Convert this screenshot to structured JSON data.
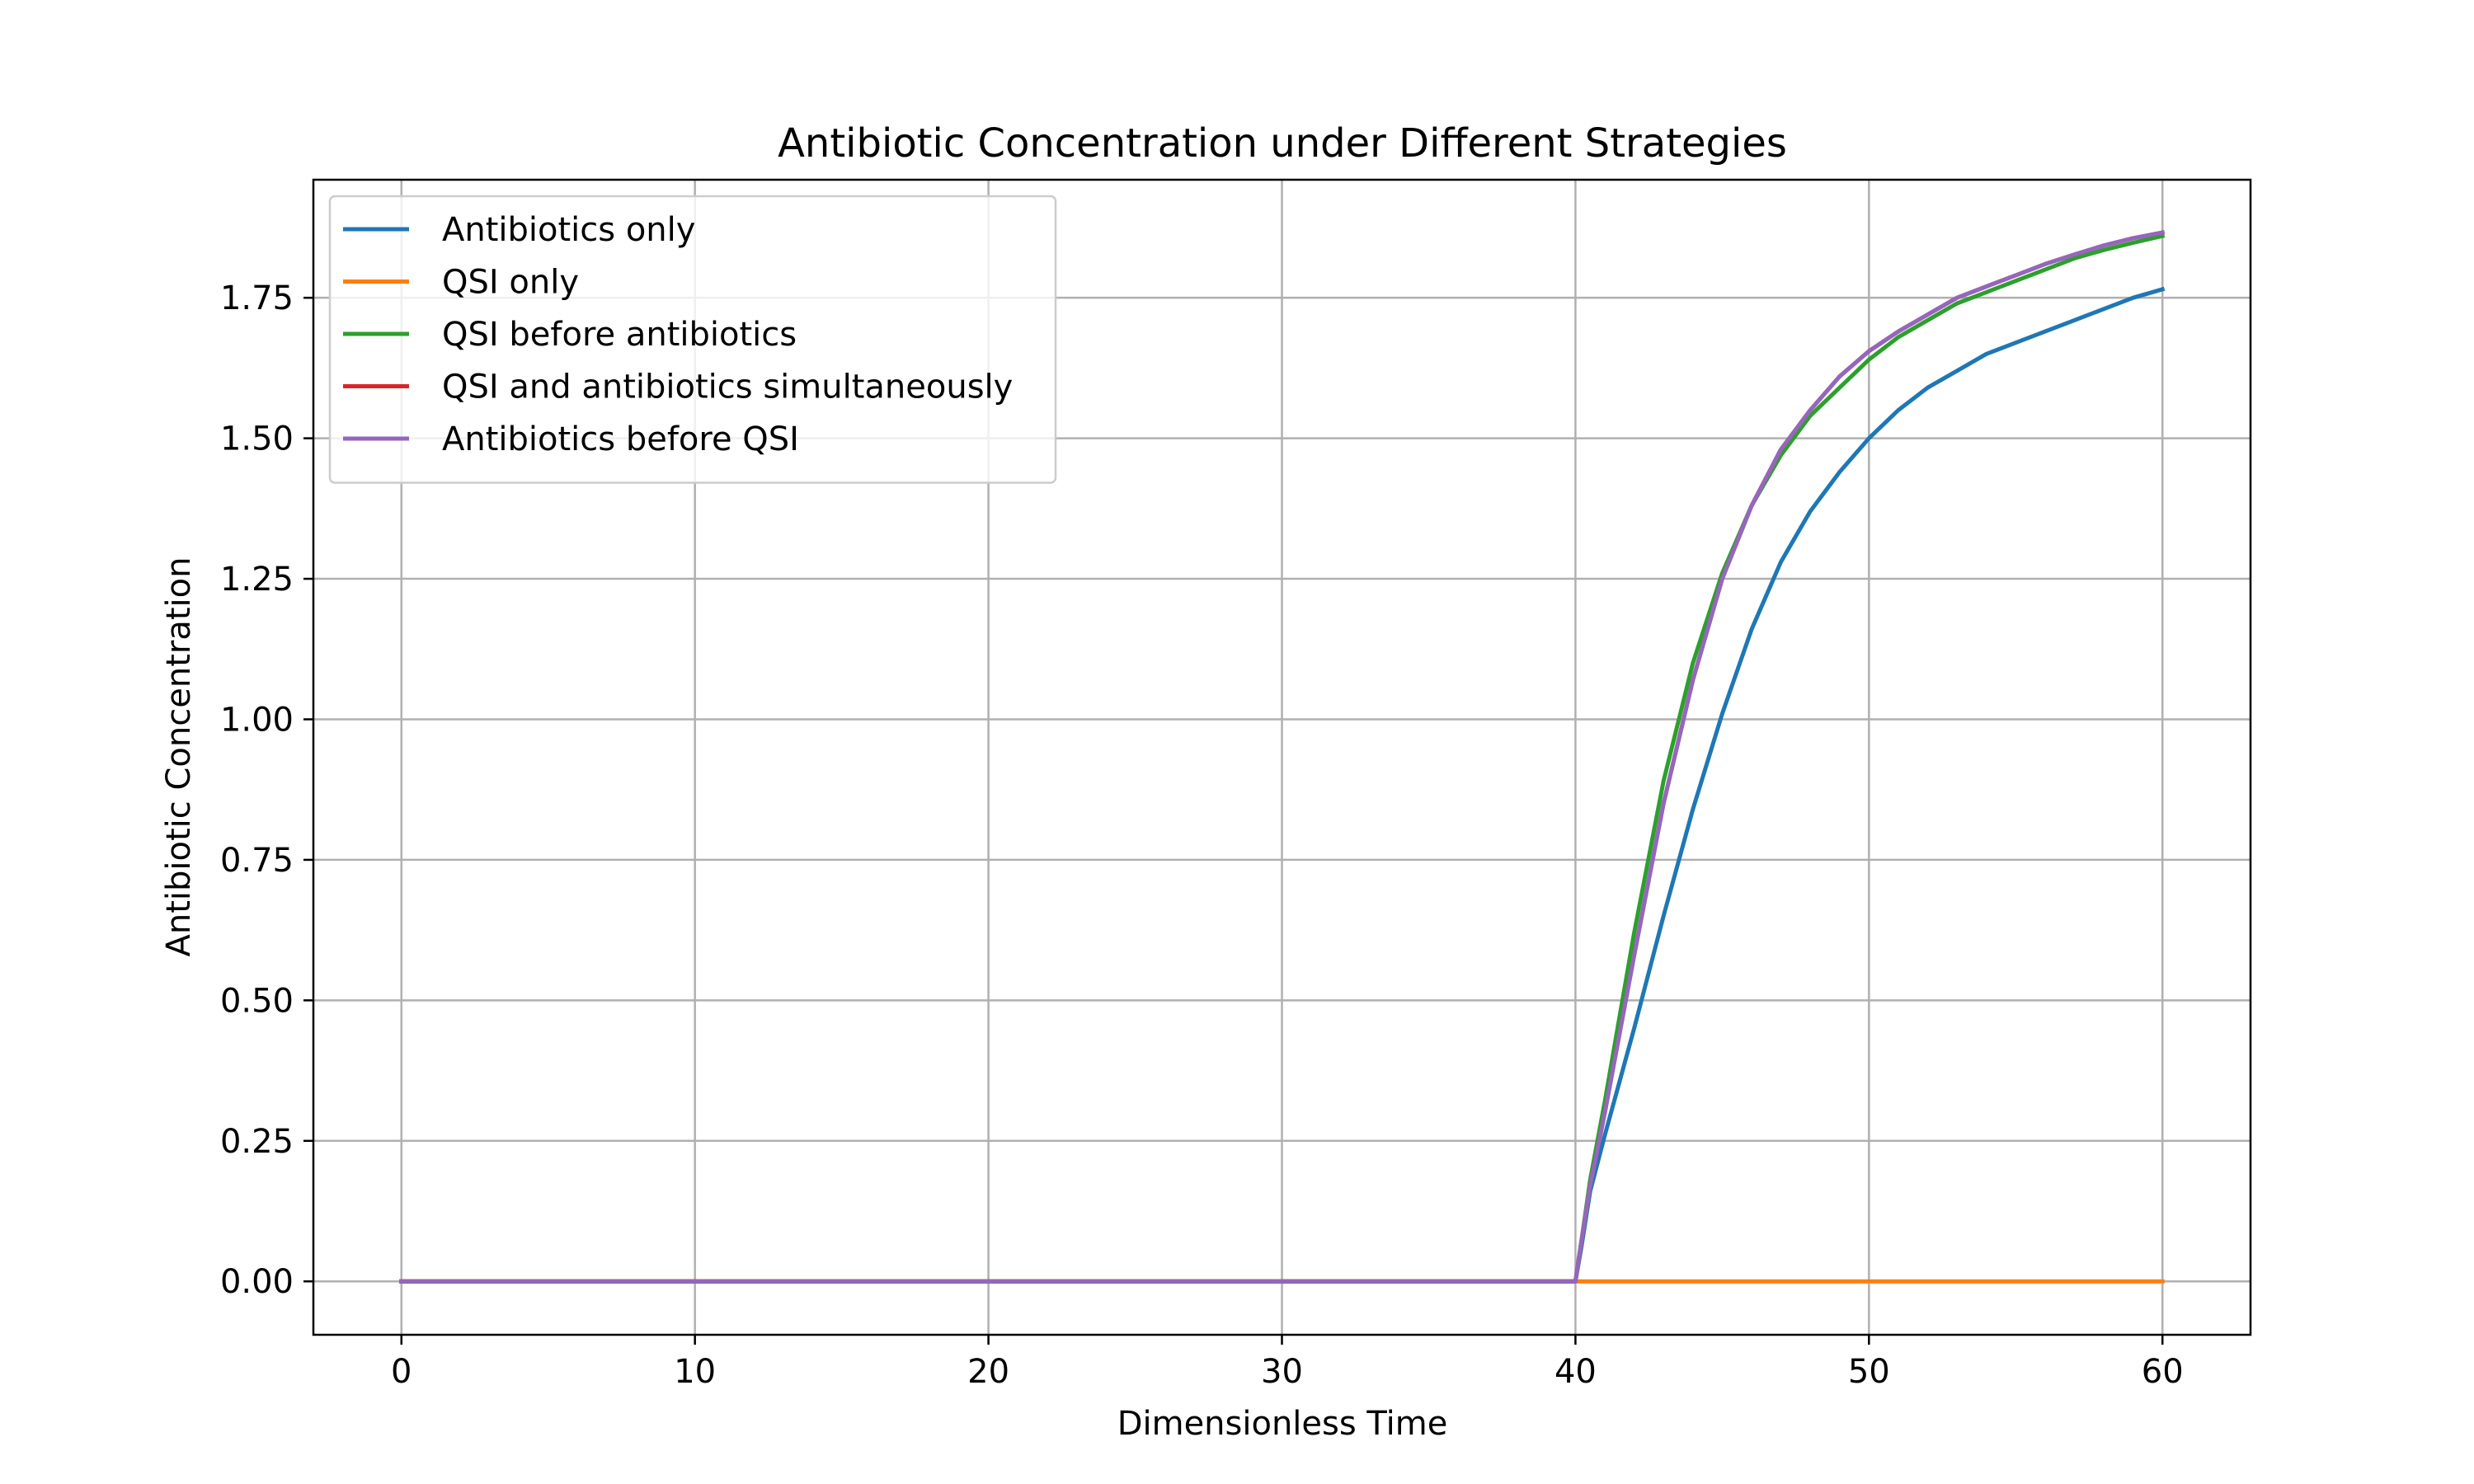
{
  "chart_data": {
    "type": "line",
    "title": "Antibiotic Concentration under Different Strategies",
    "xlabel": "Dimensionless Time",
    "ylabel": "Antibiotic Concentration",
    "xlim": [
      -3,
      63
    ],
    "ylim": [
      -0.095,
      1.96
    ],
    "xticks": [
      0,
      10,
      20,
      30,
      40,
      50,
      60
    ],
    "xtick_labels": [
      "0",
      "10",
      "20",
      "30",
      "40",
      "50",
      "60"
    ],
    "yticks": [
      0,
      0.25,
      0.5,
      0.75,
      1.0,
      1.25,
      1.5,
      1.75
    ],
    "ytick_labels": [
      "0.00",
      "0.25",
      "0.50",
      "0.75",
      "1.00",
      "1.25",
      "1.50",
      "1.75"
    ],
    "grid": true,
    "legend_position": "top-left",
    "series": [
      {
        "name": "Antibiotics only",
        "color": "#1f77b4",
        "x": [
          0,
          10,
          20,
          30,
          39.9,
          40,
          40.2,
          40.5,
          41,
          42,
          43,
          44,
          45,
          46,
          47,
          48,
          49,
          50,
          51,
          52,
          53,
          54,
          55,
          56,
          57,
          58,
          59,
          60
        ],
        "y": [
          0,
          0,
          0,
          0,
          0,
          0,
          0.06,
          0.16,
          0.26,
          0.45,
          0.65,
          0.84,
          1.01,
          1.16,
          1.28,
          1.37,
          1.44,
          1.5,
          1.55,
          1.59,
          1.62,
          1.65,
          1.67,
          1.69,
          1.71,
          1.73,
          1.75,
          1.765
        ]
      },
      {
        "name": "QSI only",
        "color": "#ff7f0e",
        "x": [
          0,
          10,
          20,
          30,
          40,
          50,
          60
        ],
        "y": [
          0,
          0,
          0,
          0,
          0,
          0,
          0
        ]
      },
      {
        "name": "QSI before antibiotics",
        "color": "#2ca02c",
        "x": [
          0,
          10,
          20,
          30,
          39.9,
          40,
          40.2,
          40.5,
          41,
          42,
          43,
          44,
          45,
          46,
          47,
          48,
          49,
          50,
          51,
          52,
          53,
          54,
          55,
          56,
          57,
          58,
          59,
          60
        ],
        "y": [
          0,
          0,
          0,
          0,
          0,
          0,
          0.07,
          0.18,
          0.32,
          0.62,
          0.89,
          1.1,
          1.26,
          1.38,
          1.47,
          1.54,
          1.59,
          1.64,
          1.68,
          1.71,
          1.74,
          1.76,
          1.78,
          1.8,
          1.82,
          1.835,
          1.848,
          1.86
        ]
      },
      {
        "name": "QSI and antibiotics simultaneously",
        "color": "#d62728",
        "x": [
          0,
          10,
          20,
          30,
          39.9,
          40,
          40.2,
          40.5,
          41,
          42,
          43,
          44,
          45,
          46,
          47,
          48,
          49,
          50,
          51,
          52,
          53,
          54,
          55,
          56,
          57,
          58,
          59,
          60
        ],
        "y": [
          0,
          0,
          0,
          0,
          0,
          0,
          0.07,
          0.17,
          0.3,
          0.58,
          0.85,
          1.07,
          1.25,
          1.38,
          1.48,
          1.55,
          1.61,
          1.655,
          1.69,
          1.72,
          1.75,
          1.77,
          1.79,
          1.81,
          1.827,
          1.843,
          1.856,
          1.866
        ]
      },
      {
        "name": "Antibiotics before QSI",
        "color": "#9467bd",
        "x": [
          0,
          10,
          20,
          30,
          39.9,
          40,
          40.2,
          40.5,
          41,
          42,
          43,
          44,
          45,
          46,
          47,
          48,
          49,
          50,
          51,
          52,
          53,
          54,
          55,
          56,
          57,
          58,
          59,
          60
        ],
        "y": [
          0,
          0,
          0,
          0,
          0,
          0,
          0.07,
          0.17,
          0.3,
          0.58,
          0.85,
          1.07,
          1.25,
          1.38,
          1.48,
          1.55,
          1.61,
          1.655,
          1.69,
          1.72,
          1.75,
          1.77,
          1.79,
          1.81,
          1.827,
          1.843,
          1.856,
          1.866
        ]
      }
    ]
  }
}
